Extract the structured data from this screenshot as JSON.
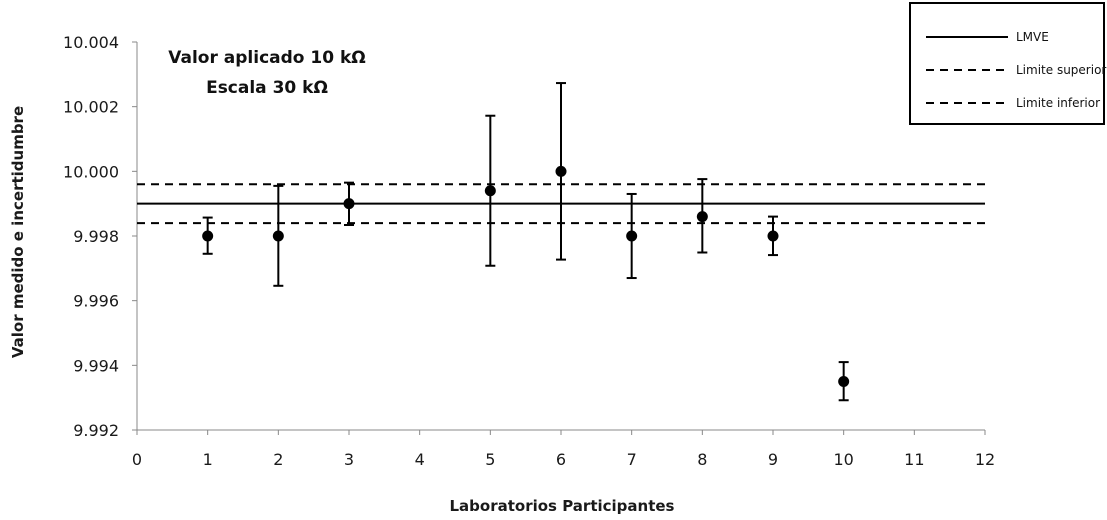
{
  "chart_data": {
    "type": "scatter",
    "xlabel": "Laboratorios Participantes",
    "ylabel": "Valor medido e incertidumbre",
    "xlim": [
      0,
      12
    ],
    "ylim": [
      9.992,
      10.004
    ],
    "xticks": [
      "0",
      "1",
      "2",
      "3",
      "4",
      "5",
      "6",
      "7",
      "8",
      "9",
      "10",
      "11",
      "12"
    ],
    "yticks": [
      "9.992",
      "9.994",
      "9.996",
      "9.998",
      "10.000",
      "10.002",
      "10.004"
    ],
    "annotations": [
      "Valor aplicado 10 kΩ",
      "Escala 30 kΩ"
    ],
    "legend_position": "top-right",
    "grid": false,
    "series": [
      {
        "kind": "points",
        "x": [
          1,
          2,
          3,
          5,
          6,
          7,
          8,
          9,
          10
        ],
        "y": [
          9.998,
          9.998,
          9.999,
          9.9994,
          10.0,
          9.998,
          9.9986,
          9.998,
          9.9935
        ],
        "err_low": [
          9.99745,
          9.99646,
          9.99834,
          9.99708,
          9.99727,
          9.9967,
          9.99749,
          9.99741,
          9.99292
        ],
        "err_high": [
          9.99857,
          9.99955,
          9.99965,
          10.00172,
          10.00273,
          9.9993,
          9.99976,
          9.9986,
          9.9941
        ]
      },
      {
        "name": "LMVE",
        "kind": "hline",
        "value": 9.999,
        "dash": "solid"
      },
      {
        "name": "Limite superior",
        "kind": "hline",
        "value": 9.9996,
        "dash": "dashed"
      },
      {
        "name": "Limite inferior",
        "kind": "hline",
        "value": 9.9984,
        "dash": "dashed"
      }
    ]
  }
}
